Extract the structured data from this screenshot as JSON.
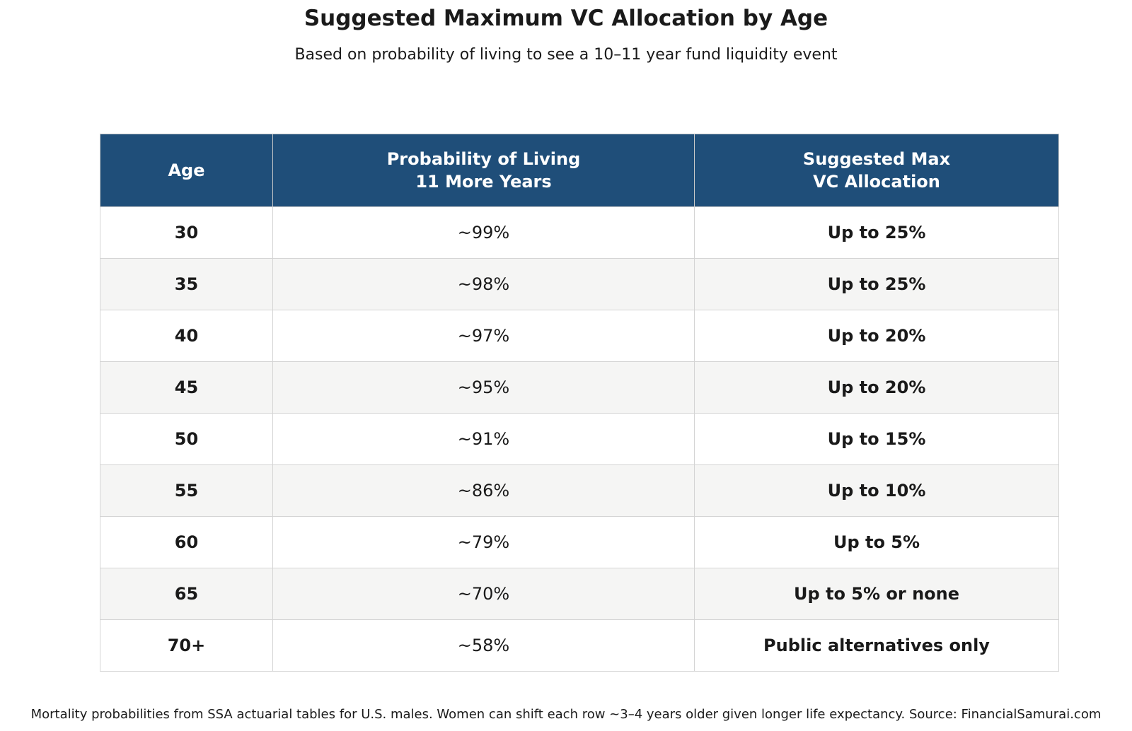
{
  "title": "Suggested Maximum VC Allocation by Age",
  "subtitle": "Based on probability of living to see a 10–11 year fund liquidity event",
  "footer": "Mortality probabilities from SSA actuarial tables for U.S. males. Women can shift each row ~3–4 years older given longer life expectancy. Source: FinancialSamurai.com",
  "colors": {
    "header_bg": "#1f4e79",
    "header_text": "#ffffff",
    "row_alt_bg": "#f5f5f4",
    "row_bg": "#ffffff",
    "border": "#d4d4d4"
  },
  "chart_data": {
    "type": "table",
    "title": "Suggested Maximum VC Allocation by Age",
    "subtitle": "Based on probability of living to see a 10–11 year fund liquidity event",
    "columns": [
      {
        "line1": "Age",
        "line2": ""
      },
      {
        "line1": "Probability of Living",
        "line2": "11 More Years"
      },
      {
        "line1": "Suggested Max",
        "line2": "VC Allocation"
      }
    ],
    "rows": [
      {
        "age": "30",
        "probability": "~99%",
        "allocation": "Up to 25%"
      },
      {
        "age": "35",
        "probability": "~98%",
        "allocation": "Up to 25%"
      },
      {
        "age": "40",
        "probability": "~97%",
        "allocation": "Up to 20%"
      },
      {
        "age": "45",
        "probability": "~95%",
        "allocation": "Up to 20%"
      },
      {
        "age": "50",
        "probability": "~91%",
        "allocation": "Up to 15%"
      },
      {
        "age": "55",
        "probability": "~86%",
        "allocation": "Up to 10%"
      },
      {
        "age": "60",
        "probability": "~79%",
        "allocation": "Up to 5%"
      },
      {
        "age": "65",
        "probability": "~70%",
        "allocation": "Up to 5% or none"
      },
      {
        "age": "70+",
        "probability": "~58%",
        "allocation": "Public alternatives only"
      }
    ]
  }
}
